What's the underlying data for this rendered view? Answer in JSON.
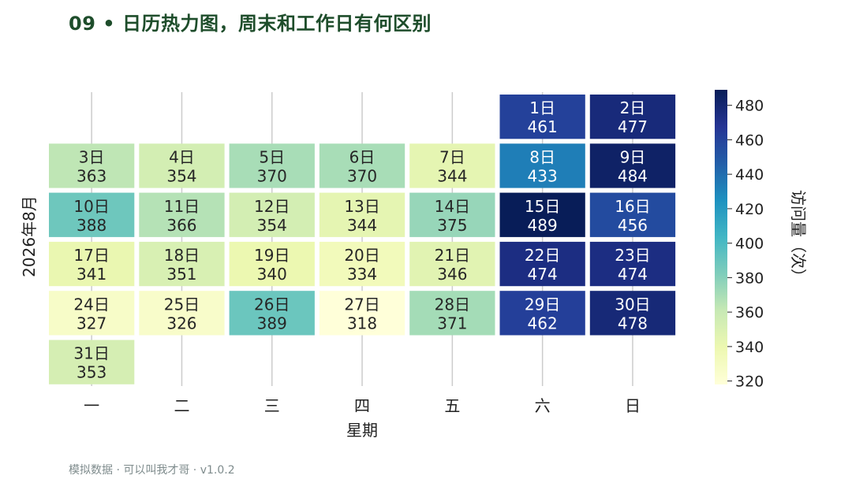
{
  "title": "09 • 日历热力图，周末和工作日有何区别",
  "footer": "模拟数据 · 可以叫我才哥 · v1.0.2",
  "chart_data": {
    "type": "heatmap",
    "xlabel": "星期",
    "ylabel": "2026年8月",
    "colorbar_label": "访问量（次）",
    "weekdays": [
      "一",
      "二",
      "三",
      "四",
      "五",
      "六",
      "日"
    ],
    "value_range": [
      318,
      489
    ],
    "colorbar_ticks": [
      320,
      340,
      360,
      380,
      400,
      420,
      440,
      460,
      480
    ],
    "days": [
      {
        "label": "1日",
        "value": 461,
        "week": 0,
        "weekday": 5
      },
      {
        "label": "2日",
        "value": 477,
        "week": 0,
        "weekday": 6
      },
      {
        "label": "3日",
        "value": 363,
        "week": 1,
        "weekday": 0
      },
      {
        "label": "4日",
        "value": 354,
        "week": 1,
        "weekday": 1
      },
      {
        "label": "5日",
        "value": 370,
        "week": 1,
        "weekday": 2
      },
      {
        "label": "6日",
        "value": 370,
        "week": 1,
        "weekday": 3
      },
      {
        "label": "7日",
        "value": 344,
        "week": 1,
        "weekday": 4
      },
      {
        "label": "8日",
        "value": 433,
        "week": 1,
        "weekday": 5
      },
      {
        "label": "9日",
        "value": 484,
        "week": 1,
        "weekday": 6
      },
      {
        "label": "10日",
        "value": 388,
        "week": 2,
        "weekday": 0
      },
      {
        "label": "11日",
        "value": 366,
        "week": 2,
        "weekday": 1
      },
      {
        "label": "12日",
        "value": 354,
        "week": 2,
        "weekday": 2
      },
      {
        "label": "13日",
        "value": 344,
        "week": 2,
        "weekday": 3
      },
      {
        "label": "14日",
        "value": 375,
        "week": 2,
        "weekday": 4
      },
      {
        "label": "15日",
        "value": 489,
        "week": 2,
        "weekday": 5
      },
      {
        "label": "16日",
        "value": 456,
        "week": 2,
        "weekday": 6
      },
      {
        "label": "17日",
        "value": 341,
        "week": 3,
        "weekday": 0
      },
      {
        "label": "18日",
        "value": 351,
        "week": 3,
        "weekday": 1
      },
      {
        "label": "19日",
        "value": 340,
        "week": 3,
        "weekday": 2
      },
      {
        "label": "20日",
        "value": 334,
        "week": 3,
        "weekday": 3
      },
      {
        "label": "21日",
        "value": 346,
        "week": 3,
        "weekday": 4
      },
      {
        "label": "22日",
        "value": 474,
        "week": 3,
        "weekday": 5
      },
      {
        "label": "23日",
        "value": 474,
        "week": 3,
        "weekday": 6
      },
      {
        "label": "24日",
        "value": 327,
        "week": 4,
        "weekday": 0
      },
      {
        "label": "25日",
        "value": 326,
        "week": 4,
        "weekday": 1
      },
      {
        "label": "26日",
        "value": 389,
        "week": 4,
        "weekday": 2
      },
      {
        "label": "27日",
        "value": 318,
        "week": 4,
        "weekday": 3
      },
      {
        "label": "28日",
        "value": 371,
        "week": 4,
        "weekday": 4
      },
      {
        "label": "29日",
        "value": 462,
        "week": 4,
        "weekday": 5
      },
      {
        "label": "30日",
        "value": 478,
        "week": 4,
        "weekday": 6
      },
      {
        "label": "31日",
        "value": 353,
        "week": 5,
        "weekday": 0
      }
    ],
    "colormap": "YlGnBu",
    "grid": "vertical-lines"
  }
}
